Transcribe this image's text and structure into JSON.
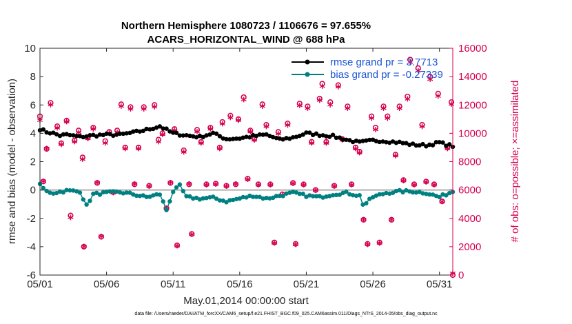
{
  "chart_data": {
    "type": "line",
    "title": "Northern Hemisphere 1080723 / 1106676 = 97.655%",
    "subtitle": "ACARS_HORIZONTAL_WIND @ 688 hPa",
    "xlabel": "May.01,2014 00:00:00 start",
    "ylabel": "rmse and bias (model - observation)",
    "y2label": "# of obs: o=possible; ×=assimilated",
    "footnote": "data file: /Users/raeder/DAI/ATM_forcXX/CAM6_setup/f.e21.FHIST_BGC.f09_025.CAM6assim.011/Diags_NTrS_2014-05/obs_diag_output.nc",
    "xlim": [
      1,
      32
    ],
    "ylim": [
      -6,
      10
    ],
    "y2lim": [
      0,
      16000
    ],
    "xticks": [
      1,
      6,
      11,
      16,
      21,
      26,
      31
    ],
    "xtick_labels": [
      "05/01",
      "05/06",
      "05/11",
      "05/16",
      "05/21",
      "05/26",
      "05/31"
    ],
    "yticks": [
      -6,
      -4,
      -2,
      0,
      2,
      4,
      6,
      8,
      10
    ],
    "ytick_labels": [
      "-6",
      "-4",
      "-2",
      "0",
      "2",
      "4",
      "6",
      "8",
      "10"
    ],
    "y2ticks": [
      0,
      2000,
      4000,
      6000,
      8000,
      10000,
      12000,
      14000,
      16000
    ],
    "y2tick_labels": [
      "0",
      "2000",
      "4000",
      "6000",
      "8000",
      "10000",
      "12000",
      "14000",
      "16000"
    ],
    "zero_line": 0,
    "legend": [
      {
        "label": "rmse grand pr = 3.7713",
        "color": "#000000",
        "marker": "circle"
      },
      {
        "label": "bias grand pr = -0.27339",
        "color": "#008080",
        "marker": "circle"
      }
    ],
    "series": [
      {
        "name": "rmse",
        "axis": "left",
        "color": "#000000",
        "keyframes": [
          [
            1,
            4.3
          ],
          [
            1.5,
            4.1
          ],
          [
            2,
            4.0
          ],
          [
            2.5,
            3.85
          ],
          [
            3,
            3.9
          ],
          [
            4,
            3.75
          ],
          [
            5,
            3.85
          ],
          [
            6,
            3.9
          ],
          [
            7,
            3.9
          ],
          [
            8,
            4.05
          ],
          [
            9,
            4.25
          ],
          [
            10,
            4.5
          ],
          [
            11,
            4.0
          ],
          [
            12,
            3.85
          ],
          [
            13,
            3.75
          ],
          [
            14,
            4.0
          ],
          [
            15,
            3.6
          ],
          [
            16,
            3.65
          ],
          [
            17,
            3.8
          ],
          [
            18,
            3.9
          ],
          [
            19,
            3.55
          ],
          [
            20,
            3.7
          ],
          [
            21,
            4.0
          ],
          [
            22,
            3.9
          ],
          [
            23,
            3.8
          ],
          [
            24,
            3.55
          ],
          [
            25,
            3.35
          ],
          [
            26,
            3.5
          ],
          [
            27,
            3.45
          ],
          [
            28,
            3.35
          ],
          [
            29,
            3.2
          ],
          [
            30,
            3.15
          ],
          [
            31,
            3.35
          ],
          [
            31.5,
            3.2
          ],
          [
            32,
            3.1
          ]
        ],
        "samples_per_day": 4
      },
      {
        "name": "bias",
        "axis": "left",
        "color": "#008080",
        "keyframes": [
          [
            1,
            0.35
          ],
          [
            1.5,
            -0.1
          ],
          [
            2,
            -0.2
          ],
          [
            3,
            -0.05
          ],
          [
            4,
            -0.1
          ],
          [
            4.5,
            -1.1
          ],
          [
            5,
            -0.3
          ],
          [
            6,
            -0.2
          ],
          [
            7,
            -0.15
          ],
          [
            8,
            -0.3
          ],
          [
            9,
            -0.5
          ],
          [
            10,
            -0.3
          ],
          [
            10.5,
            -1.4
          ],
          [
            11,
            -0.1
          ],
          [
            11.5,
            0.3
          ],
          [
            12,
            -0.5
          ],
          [
            13,
            -0.6
          ],
          [
            14,
            -0.55
          ],
          [
            15,
            -0.8
          ],
          [
            16,
            -0.6
          ],
          [
            17,
            -0.4
          ],
          [
            18,
            -0.6
          ],
          [
            19,
            -0.4
          ],
          [
            20,
            -0.2
          ],
          [
            21,
            -0.4
          ],
          [
            22,
            -0.5
          ],
          [
            23,
            -0.3
          ],
          [
            24,
            -0.2
          ],
          [
            25,
            -0.4
          ],
          [
            25.3,
            -1.1
          ],
          [
            26,
            -0.5
          ],
          [
            27,
            -0.2
          ],
          [
            28,
            -0.1
          ],
          [
            29,
            -0.1
          ],
          [
            30,
            -0.2
          ],
          [
            31,
            -0.5
          ],
          [
            31.5,
            -0.3
          ],
          [
            32,
            -0.1
          ]
        ],
        "samples_per_day": 4
      },
      {
        "name": "possible",
        "axis": "right",
        "color": "#d6004f",
        "marker": "o",
        "points": [
          [
            1,
            11200
          ],
          [
            1.25,
            6600
          ],
          [
            1.5,
            8900
          ],
          [
            1.8,
            12150
          ],
          [
            2.3,
            10500
          ],
          [
            2.6,
            9300
          ],
          [
            3.0,
            10900
          ],
          [
            3.3,
            4200
          ],
          [
            3.6,
            9500
          ],
          [
            3.9,
            10200
          ],
          [
            4.2,
            8300
          ],
          [
            4.3,
            2000
          ],
          [
            4.6,
            9700
          ],
          [
            5.0,
            10400
          ],
          [
            5.3,
            6500
          ],
          [
            5.6,
            2700
          ],
          [
            5.9,
            9450
          ],
          [
            6.2,
            10100
          ],
          [
            6.5,
            5850
          ],
          [
            6.8,
            10200
          ],
          [
            7.1,
            12050
          ],
          [
            7.4,
            9000
          ],
          [
            7.8,
            11850
          ],
          [
            8.1,
            6400
          ],
          [
            8.4,
            9000
          ],
          [
            8.8,
            11850
          ],
          [
            9.2,
            6300
          ],
          [
            9.6,
            12000
          ],
          [
            9.9,
            9550
          ],
          [
            10.2,
            10000
          ],
          [
            10.5,
            4700
          ],
          [
            10.8,
            6500
          ],
          [
            11.1,
            10300
          ],
          [
            11.3,
            2100
          ],
          [
            11.8,
            8800
          ],
          [
            12.2,
            6400
          ],
          [
            12.4,
            2900
          ],
          [
            12.8,
            10250
          ],
          [
            13.1,
            9400
          ],
          [
            13.5,
            6400
          ],
          [
            13.8,
            10400
          ],
          [
            14.2,
            6450
          ],
          [
            14.5,
            9000
          ],
          [
            14.7,
            10800
          ],
          [
            15.0,
            6300
          ],
          [
            15.3,
            11250
          ],
          [
            15.7,
            6400
          ],
          [
            15.9,
            11000
          ],
          [
            16.3,
            12550
          ],
          [
            16.6,
            6800
          ],
          [
            16.8,
            10200
          ],
          [
            17.1,
            9600
          ],
          [
            17.4,
            6400
          ],
          [
            17.7,
            12050
          ],
          [
            18.0,
            10600
          ],
          [
            18.3,
            6400
          ],
          [
            18.6,
            2300
          ],
          [
            18.9,
            10100
          ],
          [
            19.2,
            5700
          ],
          [
            19.6,
            10700
          ],
          [
            20.0,
            6500
          ],
          [
            20.2,
            2200
          ],
          [
            20.5,
            12100
          ],
          [
            20.8,
            6400
          ],
          [
            21.1,
            11900
          ],
          [
            21.4,
            9400
          ],
          [
            21.7,
            6000
          ],
          [
            22.0,
            12450
          ],
          [
            22.2,
            13500
          ],
          [
            22.5,
            9400
          ],
          [
            22.8,
            12200
          ],
          [
            23.1,
            6300
          ],
          [
            23.4,
            13400
          ],
          [
            23.7,
            9600
          ],
          [
            24.1,
            11900
          ],
          [
            24.4,
            6400
          ],
          [
            24.7,
            9000
          ],
          [
            25.0,
            8700
          ],
          [
            25.3,
            3900
          ],
          [
            25.6,
            2200
          ],
          [
            25.9,
            11200
          ],
          [
            26.2,
            10400
          ],
          [
            26.5,
            2300
          ],
          [
            26.8,
            11900
          ],
          [
            27.1,
            11200
          ],
          [
            27.4,
            3900
          ],
          [
            27.7,
            8500
          ],
          [
            28.0,
            11900
          ],
          [
            28.3,
            6700
          ],
          [
            28.6,
            12600
          ],
          [
            28.8,
            15200
          ],
          [
            29.1,
            6400
          ],
          [
            29.4,
            14600
          ],
          [
            29.7,
            10600
          ],
          [
            30.0,
            6600
          ],
          [
            30.3,
            14000
          ],
          [
            30.6,
            6400
          ],
          [
            30.9,
            12800
          ],
          [
            31.2,
            5200
          ],
          [
            31.6,
            9000
          ],
          [
            31.9,
            12200
          ],
          [
            32.0,
            0
          ]
        ]
      },
      {
        "name": "assimilated",
        "axis": "right",
        "color": "#d6004f",
        "marker": "*",
        "points": [
          [
            1,
            10800
          ],
          [
            1.25,
            6500
          ],
          [
            1.5,
            8800
          ],
          [
            1.8,
            11900
          ],
          [
            2.3,
            10250
          ],
          [
            2.6,
            9100
          ],
          [
            3.0,
            10700
          ],
          [
            3.3,
            3950
          ],
          [
            3.6,
            9300
          ],
          [
            3.9,
            9950
          ],
          [
            4.2,
            8050
          ],
          [
            4.3,
            1900
          ],
          [
            4.6,
            9500
          ],
          [
            5.0,
            10200
          ],
          [
            5.3,
            6400
          ],
          [
            5.6,
            2600
          ],
          [
            5.9,
            9200
          ],
          [
            6.2,
            9900
          ],
          [
            6.5,
            5700
          ],
          [
            6.8,
            9950
          ],
          [
            7.1,
            11800
          ],
          [
            7.4,
            8800
          ],
          [
            7.8,
            11600
          ],
          [
            8.1,
            6300
          ],
          [
            8.4,
            8800
          ],
          [
            8.8,
            11600
          ],
          [
            9.2,
            6150
          ],
          [
            9.6,
            11750
          ],
          [
            9.9,
            9300
          ],
          [
            10.2,
            9800
          ],
          [
            10.5,
            4600
          ],
          [
            10.8,
            6400
          ],
          [
            11.1,
            10100
          ],
          [
            11.3,
            1950
          ],
          [
            11.8,
            8550
          ],
          [
            12.2,
            6300
          ],
          [
            12.4,
            2750
          ],
          [
            12.8,
            10000
          ],
          [
            13.1,
            9200
          ],
          [
            13.5,
            6250
          ],
          [
            13.8,
            10200
          ],
          [
            14.2,
            6300
          ],
          [
            14.5,
            8800
          ],
          [
            14.7,
            10550
          ],
          [
            15.0,
            6150
          ],
          [
            15.3,
            11000
          ],
          [
            15.7,
            6300
          ],
          [
            15.9,
            10800
          ],
          [
            16.3,
            12250
          ],
          [
            16.6,
            6650
          ],
          [
            16.8,
            10000
          ],
          [
            17.1,
            9400
          ],
          [
            17.4,
            6250
          ],
          [
            17.7,
            11800
          ],
          [
            18.0,
            10350
          ],
          [
            18.3,
            6250
          ],
          [
            18.6,
            2150
          ],
          [
            18.9,
            9850
          ],
          [
            19.2,
            5550
          ],
          [
            19.6,
            10450
          ],
          [
            20.0,
            6350
          ],
          [
            20.2,
            2050
          ],
          [
            20.5,
            11850
          ],
          [
            20.8,
            6250
          ],
          [
            21.1,
            11650
          ],
          [
            21.4,
            9200
          ],
          [
            21.7,
            5850
          ],
          [
            22.0,
            12200
          ],
          [
            22.2,
            13200
          ],
          [
            22.5,
            9200
          ],
          [
            22.8,
            11900
          ],
          [
            23.1,
            6150
          ],
          [
            23.4,
            13150
          ],
          [
            23.7,
            9400
          ],
          [
            24.1,
            11650
          ],
          [
            24.4,
            6250
          ],
          [
            24.7,
            8800
          ],
          [
            25.0,
            8500
          ],
          [
            25.3,
            3800
          ],
          [
            25.6,
            2050
          ],
          [
            25.9,
            10950
          ],
          [
            26.2,
            10150
          ],
          [
            26.5,
            2150
          ],
          [
            26.8,
            11650
          ],
          [
            27.1,
            10950
          ],
          [
            27.4,
            3800
          ],
          [
            27.7,
            8300
          ],
          [
            28.0,
            11650
          ],
          [
            28.3,
            6550
          ],
          [
            28.6,
            12300
          ],
          [
            28.8,
            14900
          ],
          [
            29.1,
            6250
          ],
          [
            29.4,
            14300
          ],
          [
            29.7,
            10350
          ],
          [
            30.0,
            6450
          ],
          [
            30.3,
            13700
          ],
          [
            30.6,
            6250
          ],
          [
            30.9,
            12500
          ],
          [
            31.2,
            5050
          ],
          [
            31.6,
            8800
          ],
          [
            31.9,
            11950
          ],
          [
            32.0,
            0
          ]
        ]
      }
    ]
  }
}
